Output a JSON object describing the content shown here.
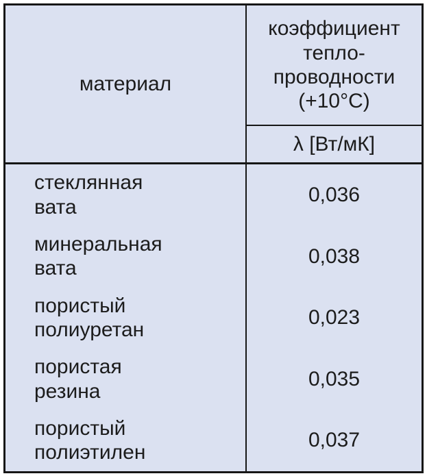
{
  "table": {
    "header": {
      "material_label": "материал",
      "coefficient_label": "коэффициент\nтепло-\nпроводности\n(+10°C)",
      "unit_label": "λ [Вт/мК]"
    },
    "rows": [
      {
        "material": "стеклянная\nвата",
        "value": "0,036"
      },
      {
        "material": "минеральная\nвата",
        "value": "0,038"
      },
      {
        "material": "пористый\nполиуретан",
        "value": "0,023"
      },
      {
        "material": "пористая\nрезина",
        "value": "0,035"
      },
      {
        "material": "пористый\nполиэтилен",
        "value": "0,037"
      }
    ]
  },
  "colors": {
    "cell_background": "#dbe1f1",
    "grid_line": "#161616",
    "text": "#1c1c1c",
    "page_background": "#ffffff"
  }
}
